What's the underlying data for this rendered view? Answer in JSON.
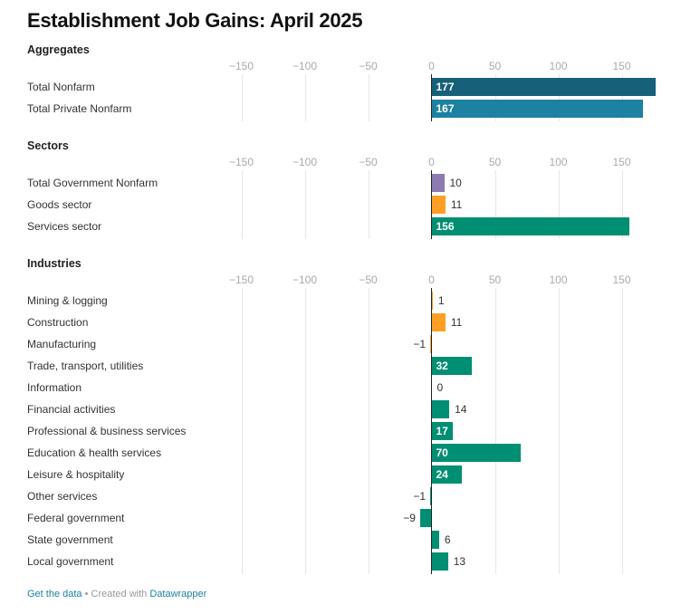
{
  "title": "Establishment Job Gains: April 2025",
  "footer": {
    "get_data": "Get the data",
    "sep": " • Created with ",
    "tool": "Datawrapper"
  },
  "chart_data": {
    "type": "bar",
    "orientation": "horizontal",
    "xlim": [
      -150,
      177
    ],
    "ticks": [
      -150,
      -100,
      -50,
      0,
      50,
      100,
      150
    ],
    "tick_labels": [
      "−150",
      "−100",
      "−50",
      "0",
      "50",
      "100",
      "150"
    ],
    "grid": true,
    "panels": [
      {
        "title": "Aggregates",
        "rows": [
          {
            "label": "Total Nonfarm",
            "value": 177,
            "display": "177",
            "color": "#17607a"
          },
          {
            "label": "Total Private Nonfarm",
            "value": 167,
            "display": "167",
            "color": "#1d81a2"
          }
        ]
      },
      {
        "title": "Sectors",
        "rows": [
          {
            "label": "Total Government Nonfarm",
            "value": 10,
            "display": "10",
            "color": "#8c7bb0"
          },
          {
            "label": "Goods sector",
            "value": 11,
            "display": "11",
            "color": "#ff9f26"
          },
          {
            "label": "Services sector",
            "value": 156,
            "display": "156",
            "color": "#008f72"
          }
        ]
      },
      {
        "title": "Industries",
        "rows": [
          {
            "label": "Mining & logging",
            "value": 1,
            "display": "1",
            "color": "#ff9f26"
          },
          {
            "label": "Construction",
            "value": 11,
            "display": "11",
            "color": "#ff9f26"
          },
          {
            "label": "Manufacturing",
            "value": -1,
            "display": "−1",
            "color": "#ff9f26"
          },
          {
            "label": "Trade, transport, utilities",
            "value": 32,
            "display": "32",
            "color": "#008f72"
          },
          {
            "label": "Information",
            "value": 0,
            "display": "0",
            "color": "#008f72"
          },
          {
            "label": "Financial activities",
            "value": 14,
            "display": "14",
            "color": "#008f72"
          },
          {
            "label": "Professional & business services",
            "value": 17,
            "display": "17",
            "color": "#008f72"
          },
          {
            "label": "Education & health services",
            "value": 70,
            "display": "70",
            "color": "#008f72"
          },
          {
            "label": "Leisure & hospitality",
            "value": 24,
            "display": "24",
            "color": "#008f72"
          },
          {
            "label": "Other services",
            "value": -1,
            "display": "−1",
            "color": "#008f72"
          },
          {
            "label": "Federal government",
            "value": -9,
            "display": "−9",
            "color": "#008f72"
          },
          {
            "label": "State government",
            "value": 6,
            "display": "6",
            "color": "#008f72"
          },
          {
            "label": "Local government",
            "value": 13,
            "display": "13",
            "color": "#008f72"
          }
        ]
      }
    ]
  }
}
